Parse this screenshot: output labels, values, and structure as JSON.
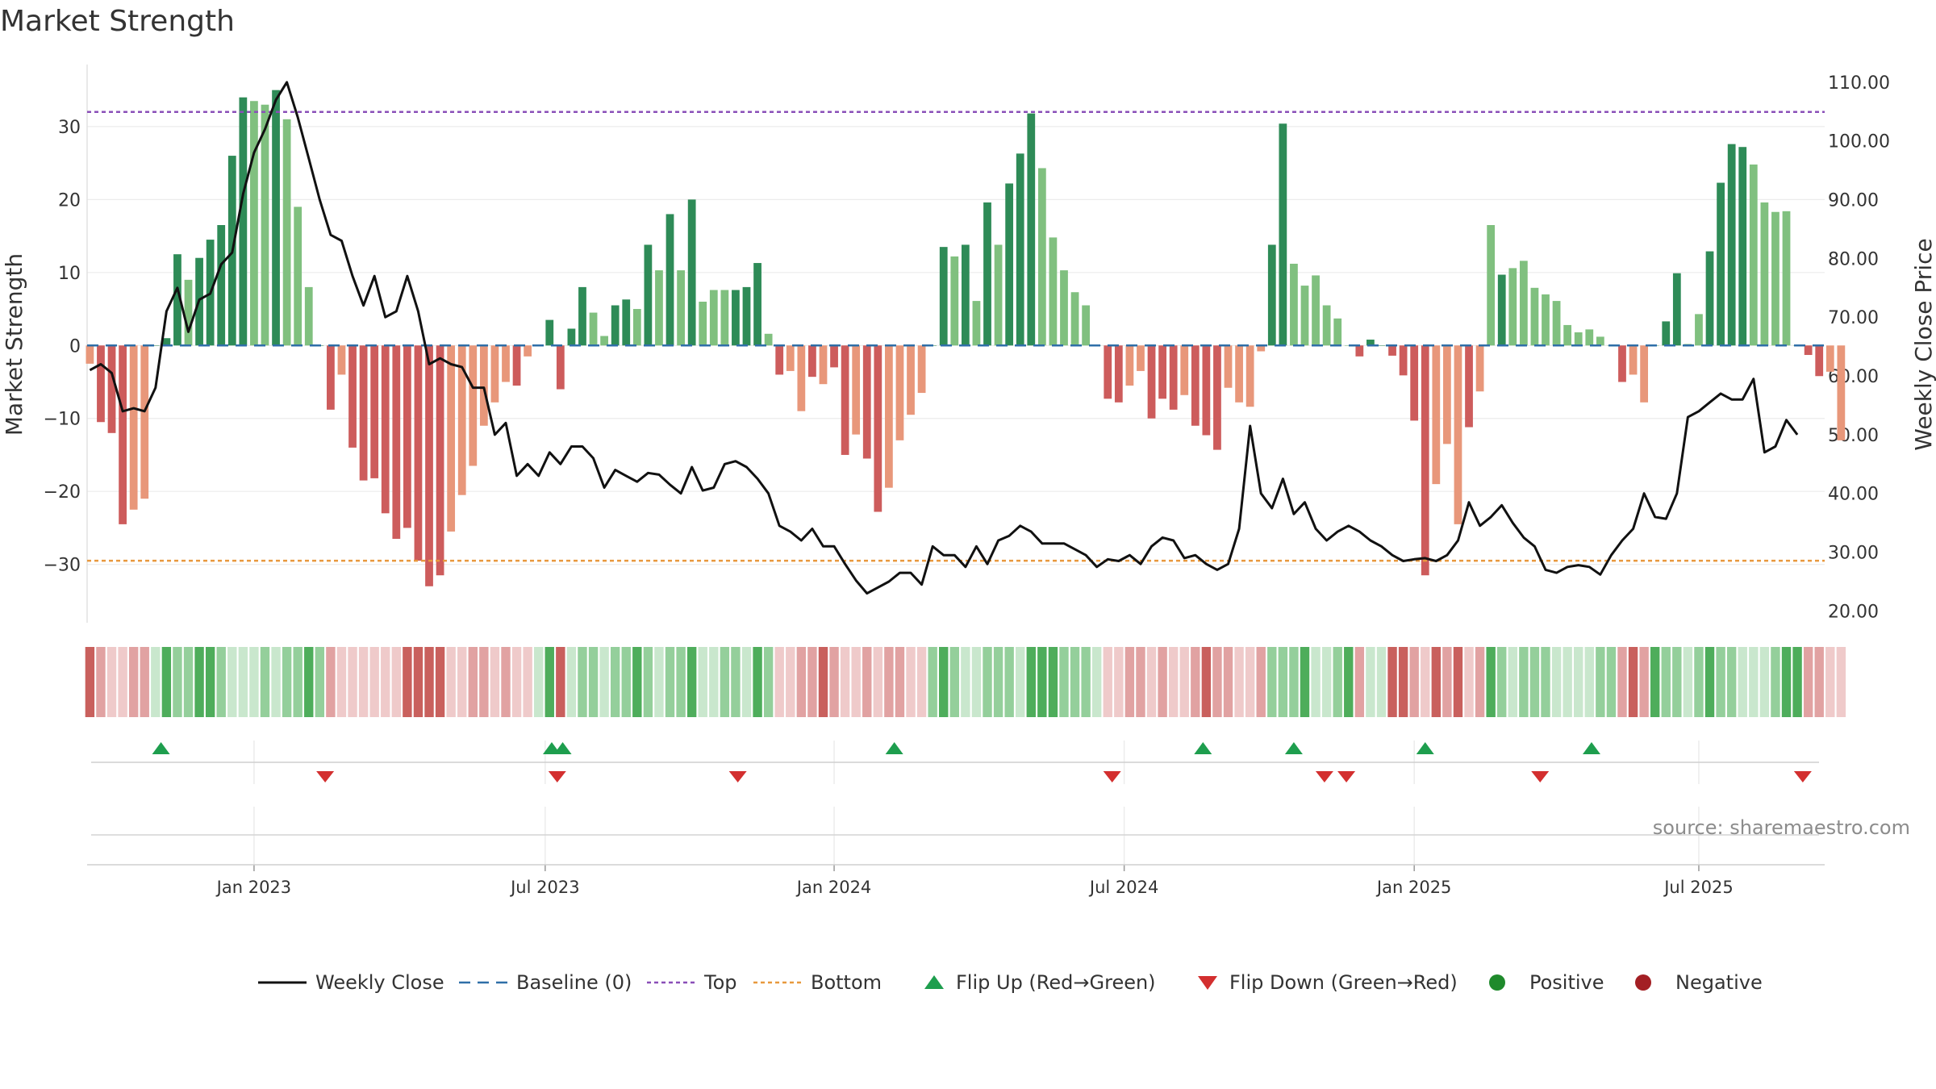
{
  "colors": {
    "line": "#111111",
    "baseline": "#2f6fa8",
    "top_line": "#8a4fb8",
    "bottom_line": "#e8993e",
    "flip_up": "#1e9e4e",
    "flip_down": "#d32f2f",
    "positive": "#1f8a2c",
    "negative": "#a31f24",
    "bar_green_dark": "#2e8b57",
    "bar_green_light": "#80c07f",
    "bar_red_dark": "#cd5c5c",
    "bar_red_light": "#e8977a"
  },
  "chart_data": {
    "type": "bar+line",
    "title": "Market Strength",
    "ylabel_left": "Market Strength",
    "ylabel_right": "Weekly Close Price",
    "ylim_left": [
      -38,
      38.5
    ],
    "ylim_right": [
      18,
      113
    ],
    "yticks_left": [
      30,
      20,
      10,
      0,
      -10,
      -20,
      -30
    ],
    "ytick_labels_left": [
      "30",
      "20",
      "10",
      "0",
      "−10",
      "−20",
      "−30"
    ],
    "yticks_right": [
      110,
      100,
      90,
      80,
      70,
      60,
      50,
      40,
      30,
      20
    ],
    "ytick_labels_right": [
      "110.00",
      "100.00",
      "90.00",
      "80.00",
      "70.00",
      "60.00",
      "50.00",
      "40.00",
      "30.00",
      "20.00"
    ],
    "x_ticks": [
      {
        "label": "Jan 2023",
        "week": 26
      },
      {
        "label": "Jul 2023",
        "week": 52.6
      },
      {
        "label": "Jan 2024",
        "week": 79
      },
      {
        "label": "Jul 2024",
        "week": 105.5
      },
      {
        "label": "Jan 2025",
        "week": 132
      },
      {
        "label": "Jul 2025",
        "week": 158
      }
    ],
    "x_range_weeks": [
      10.75,
      169.5
    ],
    "top_level": 32,
    "bottom_level": -29.5,
    "baseline": 0,
    "strength": [
      -2.5,
      -10.5,
      -12,
      -24.5,
      -22.5,
      -21,
      0,
      1,
      12.5,
      9,
      12,
      14.5,
      16.5,
      26,
      34,
      33.5,
      33,
      35,
      31,
      19,
      8,
      0,
      -8.8,
      -4,
      -14,
      -18.5,
      -18.2,
      -23,
      -26.5,
      -25,
      -29.5,
      -33,
      -31.5,
      -25.5,
      -20.5,
      -16.5,
      -11,
      -7.8,
      -5,
      -5.5,
      -1.5,
      0,
      3.5,
      -6,
      2.3,
      8,
      4.5,
      1.3,
      5.5,
      6.3,
      5,
      13.8,
      10.3,
      18,
      10.3,
      20,
      6,
      7.6,
      7.6,
      7.6,
      8,
      11.3,
      1.6,
      -4,
      -3.5,
      -9,
      -4.3,
      -5.3,
      -3,
      -15,
      -12.2,
      -15.5,
      -22.8,
      -19.5,
      -13,
      -9.5,
      -6.5,
      0,
      13.5,
      12.2,
      13.8,
      6.1,
      19.6,
      13.8,
      22.2,
      26.3,
      31.8,
      24.3,
      14.8,
      10.3,
      7.3,
      5.5,
      0,
      -7.3,
      -7.8,
      -5.5,
      -3.5,
      -10,
      -7.3,
      -8.8,
      -6.8,
      -11,
      -12.3,
      -14.3,
      -5.8,
      -7.8,
      -8.4,
      -0.8,
      13.8,
      30.4,
      11.2,
      8.2,
      9.6,
      5.5,
      3.7,
      0,
      -1.5,
      0.8,
      0,
      -1.4,
      -4.1,
      -10.3,
      -31.5,
      -19,
      -13.5,
      -24.5,
      -11.2,
      -6.3,
      16.5,
      9.7,
      10.6,
      11.6,
      7.9,
      7,
      6.1,
      2.8,
      1.8,
      2.2,
      1.2,
      0,
      -5,
      -4,
      -7.8,
      0,
      3.3,
      9.9,
      0.2,
      4.3,
      12.9,
      22.3,
      27.6,
      27.2,
      24.8,
      19.6,
      18.3,
      18.4,
      0,
      -1.3,
      -4.2,
      -3.6,
      -13
    ],
    "strength_shade": [
      1,
      0,
      0,
      0,
      1,
      1,
      0,
      0,
      0,
      1,
      0,
      0,
      0,
      0,
      0,
      1,
      1,
      0,
      1,
      1,
      1,
      0,
      0,
      1,
      0,
      0,
      0,
      0,
      0,
      0,
      0,
      0,
      0,
      1,
      1,
      1,
      1,
      1,
      1,
      0,
      1,
      0,
      0,
      0,
      0,
      0,
      1,
      1,
      0,
      0,
      1,
      0,
      1,
      0,
      1,
      0,
      1,
      1,
      1,
      0,
      0,
      0,
      1,
      0,
      1,
      1,
      0,
      1,
      0,
      0,
      1,
      0,
      0,
      1,
      1,
      1,
      1,
      0,
      0,
      1,
      0,
      1,
      0,
      1,
      0,
      0,
      0,
      1,
      1,
      1,
      1,
      1,
      0,
      0,
      0,
      1,
      1,
      0,
      0,
      0,
      1,
      0,
      0,
      0,
      1,
      1,
      1,
      1,
      0,
      0,
      1,
      1,
      1,
      1,
      1,
      1,
      0,
      0,
      0,
      0,
      0,
      0,
      0,
      1,
      1,
      1,
      0,
      1,
      1,
      0,
      1,
      1,
      1,
      1,
      1,
      1,
      1,
      1,
      1,
      1,
      0,
      1,
      1,
      1,
      0,
      0,
      1,
      1,
      0,
      0,
      0,
      0,
      1,
      1,
      1,
      1,
      1,
      0,
      0,
      1,
      1,
      1,
      0
    ],
    "weekly_close": [
      61,
      62,
      60.5,
      54,
      54.5,
      54,
      58,
      71,
      75,
      67.5,
      73,
      74,
      79,
      81,
      91,
      98,
      102,
      107,
      110,
      104,
      97,
      90,
      84,
      83,
      77,
      72,
      77,
      70,
      71,
      77,
      71,
      62,
      63,
      62,
      61.5,
      58,
      58,
      50,
      52,
      43,
      45,
      43,
      47,
      45,
      48,
      48,
      46,
      41,
      44,
      43,
      42,
      43.5,
      43.2,
      41.5,
      40,
      44.5,
      40.5,
      41,
      45,
      45.5,
      44.5,
      42.5,
      40,
      34.5,
      33.5,
      32,
      34,
      31,
      31,
      28,
      25.2,
      23,
      24,
      25,
      26.5,
      26.5,
      24.5,
      31,
      29.5,
      29.5,
      27.5,
      31,
      28,
      32,
      32.8,
      34.5,
      33.5,
      31.5,
      31.5,
      31.5,
      30.5,
      29.5,
      27.5,
      28.8,
      28.5,
      29.5,
      28,
      31,
      32.5,
      32,
      29,
      29.5,
      28,
      27,
      28,
      34,
      51.5,
      40,
      37.5,
      42.5,
      36.5,
      38.5,
      34,
      32,
      33.5,
      34.5,
      33.5,
      32,
      31,
      29.5,
      28.5,
      28.8,
      29,
      28.5,
      29.5,
      32,
      38.5,
      34.5,
      36,
      38,
      35,
      32.5,
      31,
      27,
      26.5,
      27.5,
      27.8,
      27.5,
      26.2,
      29.5,
      32,
      34,
      40,
      36,
      35.7,
      40,
      53,
      54,
      55.5,
      57,
      56,
      56,
      59.5,
      47,
      48,
      52.5,
      50
    ],
    "strip_shades": [
      3,
      2,
      1,
      1,
      2,
      2,
      1,
      3,
      2,
      2,
      3,
      3,
      2,
      1,
      1,
      1,
      2,
      1,
      2,
      2,
      3,
      2,
      2,
      1,
      1,
      1,
      1,
      1,
      1,
      3,
      3,
      3,
      3,
      1,
      1,
      2,
      2,
      1,
      2,
      1,
      1,
      1,
      3,
      3,
      1,
      2,
      2,
      1,
      2,
      2,
      3,
      2,
      1,
      2,
      2,
      3,
      1,
      1,
      2,
      2,
      1,
      3,
      2,
      1,
      1,
      2,
      2,
      3,
      2,
      1,
      1,
      2,
      1,
      2,
      2,
      1,
      1,
      2,
      3,
      2,
      1,
      1,
      2,
      2,
      2,
      1,
      3,
      3,
      3,
      2,
      2,
      2,
      1,
      1,
      1,
      2,
      2,
      1,
      2,
      1,
      1,
      2,
      3,
      2,
      2,
      1,
      1,
      2,
      2,
      2,
      2,
      3,
      1,
      1,
      2,
      3,
      2,
      1,
      1,
      3,
      3,
      2,
      1,
      3,
      2,
      3,
      1,
      2,
      3,
      2,
      1,
      2,
      2,
      2,
      1,
      1,
      1,
      1,
      2,
      2,
      2,
      3,
      2,
      3,
      2,
      2,
      1,
      2,
      3,
      2,
      2,
      1,
      1,
      1,
      2,
      3,
      3,
      2,
      2,
      1,
      1,
      1,
      2
    ],
    "flip_up_weeks": [
      17.5,
      53.2,
      54.2,
      84.5,
      112.7,
      121,
      133,
      148.2
    ],
    "flip_down_weeks": [
      32.5,
      53.7,
      70.2,
      104.4,
      123.8,
      125.8,
      143.5,
      167.5
    ],
    "legend": [
      {
        "key": "line",
        "label": "Weekly Close"
      },
      {
        "key": "baseline",
        "label": "Baseline (0)"
      },
      {
        "key": "top",
        "label": "Top"
      },
      {
        "key": "bottom",
        "label": "Bottom"
      },
      {
        "key": "flip_up",
        "label": "Flip Up (Red→Green)"
      },
      {
        "key": "flip_down",
        "label": "Flip Down (Green→Red)"
      },
      {
        "key": "positive",
        "label": "Positive"
      },
      {
        "key": "negative",
        "label": "Negative"
      }
    ],
    "source": "source: sharemaestro.com"
  }
}
